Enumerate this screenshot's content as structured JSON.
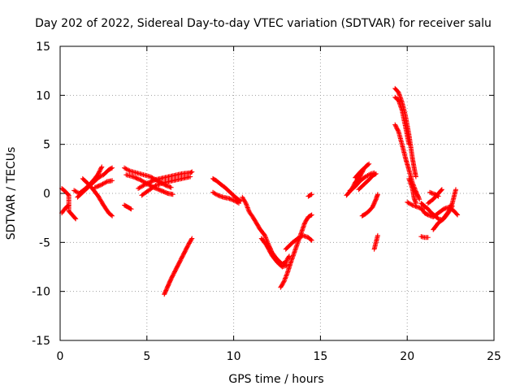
{
  "chart_data": {
    "type": "scatter",
    "title": "Day 202 of 2022, Sidereal Day-to-day VTEC variation (SDTVAR) for receiver salu",
    "xlabel": "GPS time / hours",
    "ylabel": "SDTVAR / TECUs",
    "xlim": [
      0,
      25
    ],
    "ylim": [
      -15,
      15
    ],
    "xticks": [
      0,
      5,
      10,
      15,
      20,
      25
    ],
    "yticks": [
      -15,
      -10,
      -5,
      0,
      5,
      10,
      15
    ],
    "xtick_labels": [
      "0",
      "5",
      "10",
      "15",
      "20",
      "25"
    ],
    "ytick_labels": [
      "-15",
      "-10",
      "-5",
      "0",
      "5",
      "10",
      "15"
    ],
    "grid": true,
    "marker": "+",
    "marker_color": "#ff0000",
    "series": [
      {
        "name": "SDTVAR",
        "segments": [
          [
            [
              0.1,
              0.5
            ],
            [
              0.3,
              0.2
            ],
            [
              0.5,
              -0.2
            ],
            [
              0.5,
              -1.8
            ],
            [
              0.8,
              -2.4
            ],
            [
              0.9,
              -2.6
            ]
          ],
          [
            [
              0.1,
              -2.0
            ],
            [
              0.3,
              -1.5
            ],
            [
              0.5,
              -1.2
            ]
          ],
          [
            [
              0.8,
              0.3
            ],
            [
              1.1,
              0.0
            ],
            [
              1.4,
              0.4
            ],
            [
              1.7,
              0.9
            ],
            [
              2.0,
              1.5
            ],
            [
              2.2,
              2.0
            ],
            [
              2.4,
              2.7
            ]
          ],
          [
            [
              1.0,
              -0.4
            ],
            [
              1.3,
              0.1
            ],
            [
              1.6,
              0.6
            ],
            [
              1.9,
              1.1
            ],
            [
              2.2,
              1.6
            ],
            [
              2.5,
              1.9
            ],
            [
              2.8,
              2.4
            ],
            [
              3.0,
              2.6
            ]
          ],
          [
            [
              1.3,
              1.5
            ],
            [
              1.6,
              1.0
            ],
            [
              1.9,
              0.4
            ],
            [
              2.2,
              -0.3
            ],
            [
              2.5,
              -1.2
            ],
            [
              2.8,
              -2.0
            ],
            [
              3.0,
              -2.3
            ]
          ],
          [
            [
              2.0,
              0.6
            ],
            [
              2.4,
              0.9
            ],
            [
              2.7,
              1.2
            ],
            [
              3.0,
              1.3
            ]
          ],
          [
            [
              3.7,
              2.6
            ],
            [
              4.0,
              2.3
            ],
            [
              4.4,
              2.1
            ],
            [
              4.8,
              1.9
            ],
            [
              5.2,
              1.7
            ],
            [
              5.6,
              1.3
            ],
            [
              6.0,
              0.9
            ],
            [
              6.4,
              0.6
            ]
          ],
          [
            [
              3.8,
              1.9
            ],
            [
              4.2,
              1.7
            ],
            [
              4.6,
              1.4
            ],
            [
              5.0,
              1.0
            ],
            [
              5.4,
              0.6
            ],
            [
              5.8,
              0.3
            ],
            [
              6.2,
              0.0
            ],
            [
              6.5,
              -0.1
            ]
          ],
          [
            [
              3.7,
              -1.2
            ],
            [
              3.9,
              -1.4
            ],
            [
              4.1,
              -1.6
            ]
          ],
          [
            [
              4.5,
              0.5
            ],
            [
              4.8,
              0.8
            ],
            [
              5.1,
              1.1
            ],
            [
              5.5,
              1.4
            ],
            [
              6.0,
              1.6
            ],
            [
              6.5,
              1.8
            ],
            [
              7.0,
              2.0
            ],
            [
              7.5,
              2.1
            ],
            [
              7.6,
              2.2
            ]
          ],
          [
            [
              4.7,
              -0.2
            ],
            [
              5.1,
              0.3
            ],
            [
              5.5,
              0.8
            ],
            [
              6.0,
              1.1
            ],
            [
              6.5,
              1.3
            ],
            [
              7.0,
              1.5
            ],
            [
              7.5,
              1.7
            ]
          ],
          [
            [
              6.0,
              -10.3
            ],
            [
              6.2,
              -9.5
            ],
            [
              6.4,
              -8.7
            ],
            [
              6.6,
              -8.0
            ],
            [
              6.8,
              -7.3
            ],
            [
              7.0,
              -6.6
            ],
            [
              7.2,
              -5.9
            ],
            [
              7.4,
              -5.2
            ],
            [
              7.6,
              -4.6
            ]
          ],
          [
            [
              8.8,
              1.5
            ],
            [
              9.0,
              1.3
            ],
            [
              9.2,
              1.0
            ],
            [
              9.5,
              0.6
            ],
            [
              9.8,
              0.1
            ],
            [
              10.1,
              -0.4
            ],
            [
              10.4,
              -0.8
            ]
          ],
          [
            [
              8.8,
              0.1
            ],
            [
              9.1,
              -0.2
            ],
            [
              9.4,
              -0.4
            ],
            [
              9.7,
              -0.5
            ],
            [
              10.0,
              -0.7
            ],
            [
              10.3,
              -1.0
            ]
          ],
          [
            [
              10.5,
              -0.4
            ],
            [
              10.7,
              -1.0
            ],
            [
              10.9,
              -1.9
            ],
            [
              11.1,
              -2.4
            ],
            [
              11.3,
              -3.0
            ],
            [
              11.5,
              -3.6
            ],
            [
              11.8,
              -4.3
            ],
            [
              12.0,
              -5.2
            ],
            [
              12.2,
              -6.0
            ],
            [
              12.4,
              -6.5
            ],
            [
              12.6,
              -6.9
            ],
            [
              12.8,
              -7.2
            ],
            [
              13.0,
              -7.0
            ],
            [
              13.2,
              -6.4
            ]
          ],
          [
            [
              11.6,
              -4.6
            ],
            [
              11.9,
              -5.3
            ],
            [
              12.2,
              -6.3
            ],
            [
              12.5,
              -7.0
            ],
            [
              12.8,
              -7.5
            ],
            [
              13.1,
              -7.3
            ]
          ],
          [
            [
              12.7,
              -9.6
            ],
            [
              12.9,
              -9.0
            ],
            [
              13.1,
              -8.1
            ],
            [
              13.3,
              -7.0
            ],
            [
              13.5,
              -6.0
            ],
            [
              13.7,
              -5.0
            ],
            [
              13.9,
              -4.0
            ],
            [
              14.1,
              -3.0
            ],
            [
              14.3,
              -2.4
            ],
            [
              14.5,
              -2.2
            ]
          ],
          [
            [
              13.0,
              -5.7
            ],
            [
              13.4,
              -5.0
            ],
            [
              13.7,
              -4.6
            ],
            [
              14.0,
              -4.3
            ],
            [
              14.3,
              -4.5
            ],
            [
              14.5,
              -4.8
            ]
          ],
          [
            [
              14.3,
              -0.3
            ],
            [
              14.5,
              -0.1
            ]
          ],
          [
            [
              16.5,
              -0.2
            ],
            [
              16.8,
              0.4
            ],
            [
              17.0,
              1.1
            ],
            [
              17.3,
              1.8
            ],
            [
              17.5,
              2.5
            ],
            [
              17.7,
              2.9
            ]
          ],
          [
            [
              16.7,
              0.3
            ],
            [
              17.0,
              0.7
            ],
            [
              17.3,
              1.3
            ],
            [
              17.6,
              1.7
            ],
            [
              17.9,
              2.0
            ],
            [
              18.1,
              2.1
            ]
          ],
          [
            [
              17.0,
              1.6
            ],
            [
              17.3,
              2.2
            ],
            [
              17.6,
              2.7
            ],
            [
              17.8,
              3.0
            ]
          ],
          [
            [
              17.2,
              0.4
            ],
            [
              17.5,
              0.9
            ],
            [
              17.8,
              1.4
            ],
            [
              18.0,
              1.8
            ],
            [
              18.2,
              2.0
            ]
          ],
          [
            [
              17.4,
              -2.3
            ],
            [
              17.6,
              -2.1
            ],
            [
              17.8,
              -1.8
            ],
            [
              18.0,
              -1.4
            ],
            [
              18.2,
              -0.6
            ],
            [
              18.3,
              -0.1
            ]
          ],
          [
            [
              18.1,
              -5.7
            ],
            [
              18.2,
              -5.0
            ],
            [
              18.3,
              -4.3
            ]
          ],
          [
            [
              19.3,
              10.7
            ],
            [
              19.5,
              10.3
            ],
            [
              19.7,
              9.3
            ],
            [
              19.9,
              7.9
            ],
            [
              20.1,
              6.0
            ],
            [
              20.2,
              4.8
            ],
            [
              20.3,
              3.6
            ],
            [
              20.4,
              2.6
            ],
            [
              20.5,
              1.7
            ]
          ],
          [
            [
              19.3,
              9.8
            ],
            [
              19.5,
              9.5
            ],
            [
              19.7,
              8.5
            ],
            [
              19.9,
              6.8
            ],
            [
              20.1,
              5.0
            ]
          ],
          [
            [
              19.3,
              7.0
            ],
            [
              19.5,
              6.3
            ],
            [
              19.7,
              5.0
            ],
            [
              19.9,
              3.6
            ],
            [
              20.1,
              2.4
            ],
            [
              20.3,
              1.1
            ],
            [
              20.5,
              0.2
            ],
            [
              20.7,
              -0.6
            ]
          ],
          [
            [
              20.1,
              1.5
            ],
            [
              20.3,
              0.5
            ],
            [
              20.4,
              -0.5
            ],
            [
              20.5,
              -1.0
            ]
          ],
          [
            [
              20.8,
              -1.0
            ],
            [
              21.0,
              -1.3
            ],
            [
              21.2,
              -1.6
            ],
            [
              21.4,
              -2.0
            ],
            [
              21.6,
              -2.3
            ],
            [
              21.8,
              -2.6
            ],
            [
              22.0,
              -2.7
            ],
            [
              22.2,
              -2.3
            ],
            [
              22.4,
              -1.8
            ],
            [
              22.6,
              -1.0
            ],
            [
              22.8,
              0.4
            ]
          ],
          [
            [
              20.8,
              -1.5
            ],
            [
              21.0,
              -2.0
            ],
            [
              21.2,
              -2.2
            ],
            [
              21.5,
              -2.4
            ],
            [
              21.8,
              -2.0
            ],
            [
              22.1,
              -1.6
            ],
            [
              22.4,
              -1.4
            ],
            [
              22.7,
              -1.8
            ],
            [
              22.9,
              -2.2
            ]
          ],
          [
            [
              20.8,
              -4.4
            ],
            [
              21.0,
              -4.5
            ],
            [
              21.2,
              -4.5
            ]
          ],
          [
            [
              21.2,
              -1.0
            ],
            [
              21.5,
              -0.6
            ],
            [
              21.7,
              -0.2
            ],
            [
              21.9,
              0.2
            ],
            [
              22.0,
              0.4
            ]
          ],
          [
            [
              21.5,
              -3.7
            ],
            [
              21.8,
              -3.0
            ],
            [
              22.1,
              -2.6
            ],
            [
              22.4,
              -1.9
            ],
            [
              22.6,
              -1.3
            ]
          ],
          [
            [
              21.3,
              0.1
            ],
            [
              21.6,
              -0.1
            ],
            [
              21.8,
              -0.3
            ]
          ],
          [
            [
              20.0,
              -0.9
            ],
            [
              20.3,
              -1.2
            ],
            [
              20.6,
              -1.4
            ],
            [
              20.9,
              -1.6
            ]
          ]
        ]
      }
    ]
  }
}
